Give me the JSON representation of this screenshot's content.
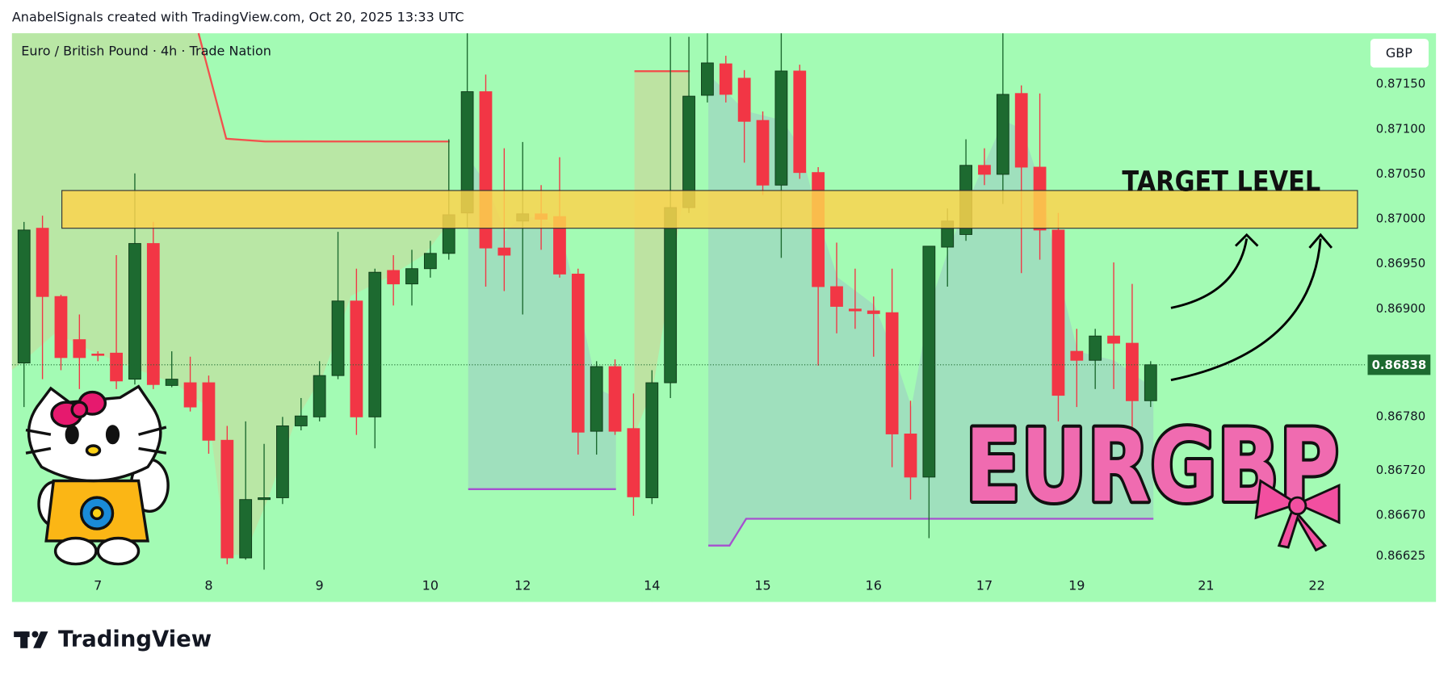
{
  "header": {
    "text": "AnabelSignals created with TradingView.com, Oct 20, 2025 13:33 UTC"
  },
  "chart_data": {
    "type": "candlestick",
    "title": "Euro / British Pound · 4h · Trade Nation",
    "currency": "GBP",
    "open": [
      0.8684,
      0.8699,
      0.86914,
      0.86866,
      0.8685,
      0.86851,
      0.86822,
      0.86973,
      0.86815,
      0.86818,
      0.86818,
      0.86754,
      0.86623,
      0.86688,
      0.8669,
      0.8677,
      0.8678,
      0.86826,
      0.86909,
      0.8678,
      0.86943,
      0.86928,
      0.86945,
      0.86962,
      0.87007,
      0.87142,
      0.86968,
      0.86998,
      0.87006,
      0.87003,
      0.86939,
      0.86764,
      0.86836,
      0.86767,
      0.8669,
      0.86818,
      0.87013,
      0.87138,
      0.87173,
      0.87157,
      0.8711,
      0.87038,
      0.87165,
      0.87052,
      0.86925,
      0.869,
      0.86898,
      0.86896,
      0.86761,
      0.86713,
      0.86969,
      0.86983,
      0.8706,
      0.8705,
      0.8714,
      0.87058,
      0.86988,
      0.86853,
      0.86843,
      0.8687,
      0.86862,
      0.86798
    ],
    "high": [
      0.86997,
      0.87004,
      0.86916,
      0.86894,
      0.86853,
      0.8696,
      0.87051,
      0.86997,
      0.86853,
      0.86847,
      0.86826,
      0.8677,
      0.86775,
      0.8675,
      0.8678,
      0.86801,
      0.86842,
      0.86986,
      0.86945,
      0.86945,
      0.8696,
      0.86966,
      0.86976,
      0.87089,
      0.87207,
      0.87161,
      0.87079,
      0.87086,
      0.87038,
      0.87069,
      0.86945,
      0.86842,
      0.86844,
      0.86806,
      0.86832,
      0.87203,
      0.87203,
      0.87207,
      0.87182,
      0.87166,
      0.8712,
      0.87207,
      0.87172,
      0.87058,
      0.86974,
      0.86945,
      0.86914,
      0.86945,
      0.86798,
      0.8697,
      0.87012,
      0.87089,
      0.87079,
      0.87207,
      0.87149,
      0.8714,
      0.87007,
      0.86878,
      0.86878,
      0.86952,
      0.86928,
      0.86842
    ],
    "low": [
      0.86791,
      0.86822,
      0.86832,
      0.86811,
      0.86842,
      0.86811,
      0.86816,
      0.86811,
      0.86813,
      0.86786,
      0.86739,
      0.86616,
      0.86621,
      0.8661,
      0.86683,
      0.86765,
      0.86775,
      0.86822,
      0.8676,
      0.86745,
      0.86904,
      0.86904,
      0.86935,
      0.86955,
      0.86991,
      0.86925,
      0.8692,
      0.86894,
      0.86966,
      0.86935,
      0.86738,
      0.86738,
      0.8676,
      0.8667,
      0.86683,
      0.86801,
      0.87007,
      0.8713,
      0.8713,
      0.87063,
      0.87027,
      0.86957,
      0.87045,
      0.86837,
      0.86873,
      0.86878,
      0.86847,
      0.86724,
      0.86688,
      0.86645,
      0.86925,
      0.86976,
      0.87038,
      0.87017,
      0.8694,
      0.86955,
      0.86775,
      0.86791,
      0.86811,
      0.86811,
      0.8676,
      0.86791
    ],
    "close": [
      0.86988,
      0.86914,
      0.86846,
      0.86846,
      0.86849,
      0.8682,
      0.86973,
      0.86816,
      0.86822,
      0.86791,
      0.86754,
      0.86623,
      0.86688,
      0.8669,
      0.8677,
      0.86781,
      0.86826,
      0.86909,
      0.8678,
      0.86941,
      0.86928,
      0.86945,
      0.86962,
      0.87005,
      0.87142,
      0.86968,
      0.8696,
      0.87006,
      0.87,
      0.86939,
      0.86763,
      0.86836,
      0.86764,
      0.86691,
      0.86818,
      0.87013,
      0.87137,
      0.87174,
      0.87139,
      0.87109,
      0.87038,
      0.87165,
      0.87052,
      0.86925,
      0.86903,
      0.86898,
      0.86895,
      0.86761,
      0.86713,
      0.8697,
      0.86998,
      0.8706,
      0.8705,
      0.87139,
      0.87058,
      0.86988,
      0.86804,
      0.86843,
      0.8687,
      0.86862,
      0.86798,
      0.86838
    ],
    "up_color": "#1d6a30",
    "down_color": "#f23645",
    "ylim": [
      0.86574,
      0.87207
    ],
    "yticks": [
      0.86625,
      {
        "value": 0.8667,
        "label": "0.86670"
      },
      {
        "value": 0.8672,
        "label": "0.86720"
      },
      {
        "value": 0.8678,
        "label": "0.86780"
      },
      {
        "value": 0.869,
        "label": "0.86900"
      },
      {
        "value": 0.8695,
        "label": "0.86950"
      },
      {
        "value": 0.87,
        "label": "0.87000"
      },
      {
        "value": 0.8705,
        "label": "0.87050"
      },
      {
        "value": 0.871,
        "label": "0.87100"
      },
      {
        "value": 0.8715,
        "label": "0.87150"
      }
    ],
    "xlim": [
      -0.65,
      72.2
    ],
    "xticks": [
      {
        "value": 4,
        "label": "7"
      },
      {
        "value": 10,
        "label": "8"
      },
      {
        "value": 16,
        "label": "9"
      },
      {
        "value": 22,
        "label": "10"
      },
      {
        "value": 27,
        "label": "12"
      },
      {
        "value": 34,
        "label": "14"
      },
      {
        "value": 40,
        "label": "15"
      },
      {
        "value": 46,
        "label": "16"
      },
      {
        "value": 52,
        "label": "17"
      },
      {
        "value": 57,
        "label": "19"
      },
      {
        "value": 64,
        "label": "21"
      },
      {
        "value": 70,
        "label": "22"
      }
    ],
    "last_price": 0.86838,
    "target_zone": [
      0.8699,
      0.87032
    ],
    "annotations": [
      "TARGET LEVEL",
      "EURGBP"
    ]
  },
  "footer": {
    "logo": "TradingView"
  }
}
